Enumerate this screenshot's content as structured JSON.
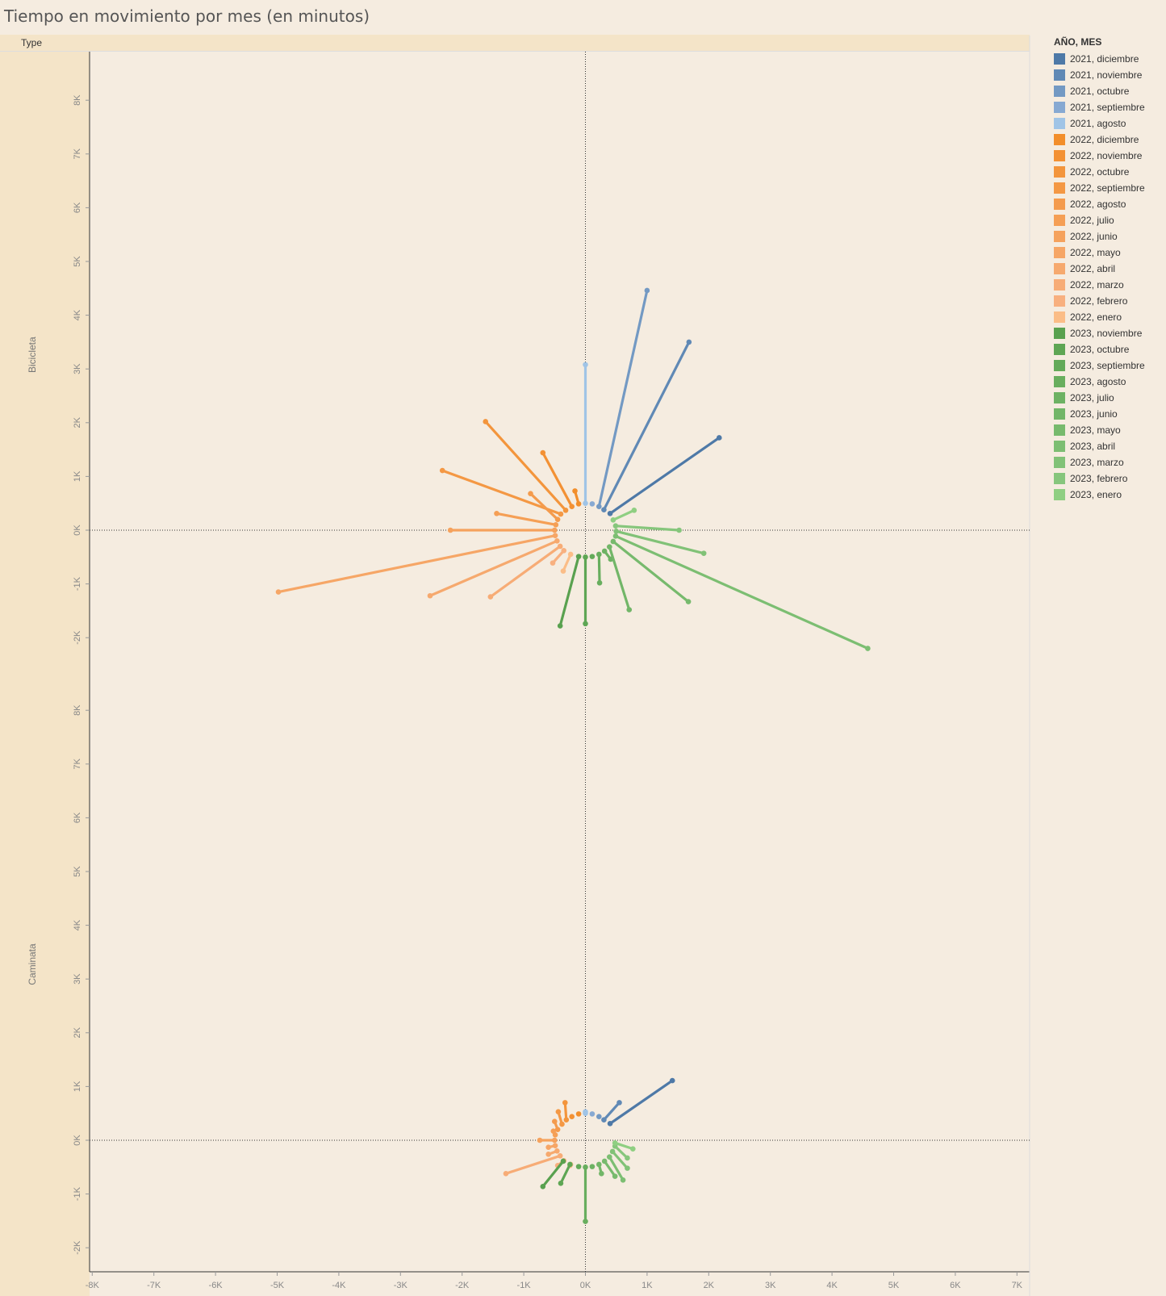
{
  "title": "Tiempo en movimiento por mes (en minutos)",
  "header": {
    "type_label": "Type"
  },
  "rows": [
    "Bicicleta",
    "Caminata"
  ],
  "legend": {
    "title": "AÑO, MES",
    "items": [
      {
        "label": "2021, diciembre",
        "color": "#4e79a7"
      },
      {
        "label": "2021, noviembre",
        "color": "#6089b5"
      },
      {
        "label": "2021, octubre",
        "color": "#7399c3"
      },
      {
        "label": "2021, septiembre",
        "color": "#87a9d2"
      },
      {
        "label": "2021, agosto",
        "color": "#a0c4e6"
      },
      {
        "label": "2022, diciembre",
        "color": "#f28e2b"
      },
      {
        "label": "2022, noviembre",
        "color": "#f39134"
      },
      {
        "label": "2022, octubre",
        "color": "#f3953c"
      },
      {
        "label": "2022, septiembre",
        "color": "#f49844"
      },
      {
        "label": "2022, agosto",
        "color": "#f49b4d"
      },
      {
        "label": "2022, julio",
        "color": "#f59f55"
      },
      {
        "label": "2022, junio",
        "color": "#f5a25d"
      },
      {
        "label": "2022, mayo",
        "color": "#f6a666"
      },
      {
        "label": "2022, abril",
        "color": "#f6a96e"
      },
      {
        "label": "2022, marzo",
        "color": "#f7ac76"
      },
      {
        "label": "2022, febrero",
        "color": "#f8b07f"
      },
      {
        "label": "2022, enero",
        "color": "#fbbd87"
      },
      {
        "label": "2023, noviembre",
        "color": "#59a14f"
      },
      {
        "label": "2023, octubre",
        "color": "#5ea654"
      },
      {
        "label": "2023, septiembre",
        "color": "#63aa59"
      },
      {
        "label": "2023, agosto",
        "color": "#68ae5e"
      },
      {
        "label": "2023, julio",
        "color": "#6db263"
      },
      {
        "label": "2023, junio",
        "color": "#72b668"
      },
      {
        "label": "2023, mayo",
        "color": "#77ba6d"
      },
      {
        "label": "2023, abril",
        "color": "#7cbe72"
      },
      {
        "label": "2023, marzo",
        "color": "#81c277"
      },
      {
        "label": "2023, febrero",
        "color": "#86c67c"
      },
      {
        "label": "2023, enero",
        "color": "#8fcf82"
      }
    ]
  },
  "chart_data": [
    {
      "type": "line",
      "panel": "Bicicleta",
      "xlim": [
        -8000,
        7000
      ],
      "ylim": [
        -2500,
        8800
      ],
      "x_ticks": [
        "-8K",
        "-7K",
        "-6K",
        "-5K",
        "-4K",
        "-3K",
        "-2K",
        "-1K",
        "0K",
        "1K",
        "2K",
        "3K",
        "4K",
        "5K",
        "6K",
        "7K"
      ],
      "y_ticks": [
        "-2K",
        "-1K",
        "0K",
        "1K",
        "2K",
        "3K",
        "4K",
        "5K",
        "6K",
        "7K",
        "8K"
      ],
      "series": [
        {
          "name": "2021, diciembre",
          "start": [
            400,
            310
          ],
          "end": [
            2170,
            1720
          ]
        },
        {
          "name": "2021, noviembre",
          "start": [
            300,
            380
          ],
          "end": [
            1680,
            3500
          ]
        },
        {
          "name": "2021, octubre",
          "start": [
            220,
            440
          ],
          "end": [
            1000,
            4460
          ]
        },
        {
          "name": "2021, septiembre",
          "start": [
            110,
            490
          ],
          "end": [
            110,
            490
          ]
        },
        {
          "name": "2021, agosto",
          "start": [
            0,
            500
          ],
          "end": [
            0,
            3080
          ]
        },
        {
          "name": "2022, diciembre",
          "start": [
            -110,
            490
          ],
          "end": [
            -170,
            730
          ]
        },
        {
          "name": "2022, noviembre",
          "start": [
            -220,
            440
          ],
          "end": [
            -690,
            1440
          ]
        },
        {
          "name": "2022, octubre",
          "start": [
            -320,
            370
          ],
          "end": [
            -1620,
            2020
          ]
        },
        {
          "name": "2022, septiembre",
          "start": [
            -400,
            300
          ],
          "end": [
            -2320,
            1110
          ]
        },
        {
          "name": "2022, agosto",
          "start": [
            -450,
            200
          ],
          "end": [
            -890,
            680
          ]
        },
        {
          "name": "2022, julio",
          "start": [
            -480,
            100
          ],
          "end": [
            -1440,
            310
          ]
        },
        {
          "name": "2022, junio",
          "start": [
            -500,
            0
          ],
          "end": [
            -2190,
            0
          ]
        },
        {
          "name": "2022, mayo",
          "start": [
            -490,
            -100
          ],
          "end": [
            -4980,
            -1150
          ]
        },
        {
          "name": "2022, abril",
          "start": [
            -460,
            -200
          ],
          "end": [
            -2520,
            -1220
          ]
        },
        {
          "name": "2022, marzo",
          "start": [
            -410,
            -300
          ],
          "end": [
            -1540,
            -1240
          ]
        },
        {
          "name": "2022, febrero",
          "start": [
            -350,
            -380
          ],
          "end": [
            -530,
            -610
          ]
        },
        {
          "name": "2022, enero",
          "start": [
            -240,
            -450
          ],
          "end": [
            -360,
            -760
          ]
        },
        {
          "name": "2023, noviembre",
          "start": [
            -110,
            -490
          ],
          "end": [
            -410,
            -1780
          ]
        },
        {
          "name": "2023, octubre",
          "start": [
            0,
            -500
          ],
          "end": [
            0,
            -1740
          ]
        },
        {
          "name": "2023, septiembre",
          "start": [
            110,
            -490
          ],
          "end": [
            110,
            -490
          ]
        },
        {
          "name": "2023, agosto",
          "start": [
            220,
            -450
          ],
          "end": [
            230,
            -980
          ]
        },
        {
          "name": "2023, julio",
          "start": [
            310,
            -390
          ],
          "end": [
            410,
            -540
          ]
        },
        {
          "name": "2023, junio",
          "start": [
            390,
            -310
          ],
          "end": [
            710,
            -1480
          ]
        },
        {
          "name": "2023, mayo",
          "start": [
            450,
            -210
          ],
          "end": [
            1670,
            -1330
          ]
        },
        {
          "name": "2023, abril",
          "start": [
            490,
            -110
          ],
          "end": [
            4580,
            -2200
          ]
        },
        {
          "name": "2023, marzo",
          "start": [
            500,
            -20
          ],
          "end": [
            1920,
            -430
          ]
        },
        {
          "name": "2023, febrero",
          "start": [
            490,
            80
          ],
          "end": [
            1520,
            0
          ]
        },
        {
          "name": "2023, enero",
          "start": [
            450,
            190
          ],
          "end": [
            790,
            370
          ]
        }
      ]
    },
    {
      "type": "line",
      "panel": "Caminata",
      "xlim": [
        -8000,
        7000
      ],
      "ylim": [
        -2500,
        8800
      ],
      "x_ticks": [
        "-8K",
        "-7K",
        "-6K",
        "-5K",
        "-4K",
        "-3K",
        "-2K",
        "-1K",
        "0K",
        "1K",
        "2K",
        "3K",
        "4K",
        "5K",
        "6K",
        "7K"
      ],
      "y_ticks": [
        "-2K",
        "-1K",
        "0K",
        "1K",
        "2K",
        "3K",
        "4K",
        "5K",
        "6K",
        "7K",
        "8K"
      ],
      "series": [
        {
          "name": "2021, diciembre",
          "start": [
            400,
            310
          ],
          "end": [
            1410,
            1110
          ]
        },
        {
          "name": "2021, noviembre",
          "start": [
            300,
            380
          ],
          "end": [
            550,
            700
          ]
        },
        {
          "name": "2021, octubre",
          "start": [
            220,
            440
          ],
          "end": [
            220,
            440
          ]
        },
        {
          "name": "2021, septiembre",
          "start": [
            110,
            490
          ],
          "end": [
            110,
            490
          ]
        },
        {
          "name": "2021, agosto",
          "start": [
            0,
            500
          ],
          "end": [
            0,
            530
          ]
        },
        {
          "name": "2022, diciembre",
          "start": [
            -110,
            490
          ],
          "end": [
            -110,
            490
          ]
        },
        {
          "name": "2022, noviembre",
          "start": [
            -220,
            440
          ],
          "end": [
            -220,
            440
          ]
        },
        {
          "name": "2022, octubre",
          "start": [
            -310,
            380
          ],
          "end": [
            -330,
            700
          ]
        },
        {
          "name": "2022, septiembre",
          "start": [
            -380,
            300
          ],
          "end": [
            -440,
            530
          ]
        },
        {
          "name": "2022, agosto",
          "start": [
            -450,
            200
          ],
          "end": [
            -500,
            350
          ]
        },
        {
          "name": "2022, julio",
          "start": [
            -490,
            100
          ],
          "end": [
            -520,
            170
          ]
        },
        {
          "name": "2022, junio",
          "start": [
            -500,
            0
          ],
          "end": [
            -740,
            0
          ]
        },
        {
          "name": "2022, mayo",
          "start": [
            -490,
            -100
          ],
          "end": [
            -600,
            -130
          ]
        },
        {
          "name": "2022, abril",
          "start": [
            -460,
            -200
          ],
          "end": [
            -600,
            -260
          ]
        },
        {
          "name": "2022, marzo",
          "start": [
            -410,
            -290
          ],
          "end": [
            -1290,
            -620
          ]
        },
        {
          "name": "2022, febrero",
          "start": [
            -350,
            -380
          ],
          "end": [
            -450,
            -470
          ]
        },
        {
          "name": "2022, enero",
          "start": [
            -240,
            -450
          ],
          "end": [
            -250,
            -470
          ]
        },
        {
          "name": "2023, noviembre",
          "start": [
            -360,
            -390
          ],
          "end": [
            -690,
            -860
          ]
        },
        {
          "name": "2023, octubre",
          "start": [
            -250,
            -450
          ],
          "end": [
            -400,
            -800
          ]
        },
        {
          "name": "2023, septiembre",
          "start": [
            -110,
            -490
          ],
          "end": [
            -110,
            -490
          ]
        },
        {
          "name": "2023, agosto",
          "start": [
            0,
            -500
          ],
          "end": [
            0,
            -1510
          ]
        },
        {
          "name": "2023, julio",
          "start": [
            110,
            -490
          ],
          "end": [
            110,
            -490
          ]
        },
        {
          "name": "2023, junio",
          "start": [
            220,
            -450
          ],
          "end": [
            260,
            -620
          ]
        },
        {
          "name": "2023, mayo",
          "start": [
            310,
            -390
          ],
          "end": [
            480,
            -670
          ]
        },
        {
          "name": "2023, abril",
          "start": [
            390,
            -310
          ],
          "end": [
            610,
            -740
          ]
        },
        {
          "name": "2023, marzo",
          "start": [
            440,
            -210
          ],
          "end": [
            680,
            -520
          ]
        },
        {
          "name": "2023, febrero",
          "start": [
            480,
            -110
          ],
          "end": [
            680,
            -330
          ]
        },
        {
          "name": "2023, enero",
          "start": [
            480,
            -50
          ],
          "end": [
            770,
            -160
          ]
        }
      ]
    }
  ]
}
